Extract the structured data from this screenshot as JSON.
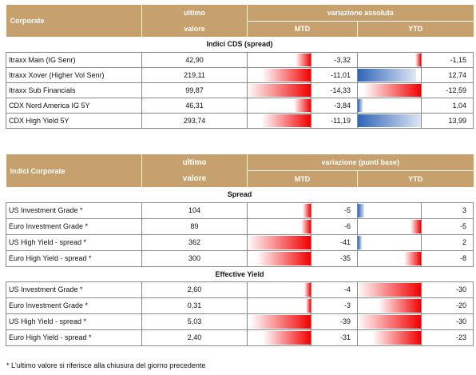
{
  "table1": {
    "header": {
      "col1": "Corporate",
      "ultimo_line1": "ultimo",
      "ultimo_line2": "valore",
      "variazione": "variazione assoluta",
      "mtd": "MTD",
      "ytd": "YTD"
    },
    "section": "Indici CDS (spread)",
    "rows": [
      {
        "name": "Itraxx Main (IG Senr)",
        "value": "42,90",
        "mtd": -3.32,
        "mtd_label": "-3,32",
        "ytd": -1.15,
        "ytd_label": "-1,15"
      },
      {
        "name": "Itraxx Xover (Higher Vol Senr)",
        "value": "219,11",
        "mtd": -11.01,
        "mtd_label": "-11,01",
        "ytd": 12.74,
        "ytd_label": "12,74"
      },
      {
        "name": "Itraxx Sub Financials",
        "value": "99,87",
        "mtd": -14.33,
        "mtd_label": "-14,33",
        "ytd": -12.59,
        "ytd_label": "-12,59"
      },
      {
        "name": "CDX Nord America IG 5Y",
        "value": "46,31",
        "mtd": -3.84,
        "mtd_label": "-3,84",
        "ytd": 1.04,
        "ytd_label": "1,04"
      },
      {
        "name": "CDX High Yield 5Y",
        "value": "293,74",
        "mtd": -11.19,
        "mtd_label": "-11,19",
        "ytd": 13.99,
        "ytd_label": "13,99"
      }
    ]
  },
  "table2": {
    "header": {
      "col1": "Indici Corporate",
      "ultimo_line1": "ultimo",
      "ultimo_line2": "valore",
      "variazione": "variazione (punti base)",
      "mtd": "MTD",
      "ytd": "YTD"
    },
    "sections": [
      {
        "title": "Spread",
        "rows": [
          {
            "name": "US Investment Grade *",
            "value": "104",
            "mtd": -5,
            "mtd_label": "-5",
            "ytd": 3,
            "ytd_label": "3"
          },
          {
            "name": "Euro Investment Grade *",
            "value": "89",
            "mtd": -6,
            "mtd_label": "-6",
            "ytd": -5,
            "ytd_label": "-5"
          },
          {
            "name": "US High Yield  - spread *",
            "value": "362",
            "mtd": -41,
            "mtd_label": "-41",
            "ytd": 2,
            "ytd_label": "2"
          },
          {
            "name": "Euro High Yield  - spread *",
            "value": "300",
            "mtd": -35,
            "mtd_label": "-35",
            "ytd": -8,
            "ytd_label": "-8"
          }
        ]
      },
      {
        "title": "Effective Yield",
        "rows": [
          {
            "name": "US Investment Grade *",
            "value": "2,60",
            "mtd": -4,
            "mtd_label": "-4",
            "ytd": -30,
            "ytd_label": "-30"
          },
          {
            "name": "Euro Investment Grade *",
            "value": "0,31",
            "mtd": -3,
            "mtd_label": "-3",
            "ytd": -20,
            "ytd_label": "-20"
          },
          {
            "name": "US High Yield  - spread *",
            "value": "5,03",
            "mtd": -39,
            "mtd_label": "-39",
            "ytd": -30,
            "ytd_label": "-30"
          },
          {
            "name": "Euro High Yield  - spread *",
            "value": "2,40",
            "mtd": -31,
            "mtd_label": "-31",
            "ytd": -23,
            "ytd_label": "-23"
          }
        ]
      }
    ]
  },
  "footnote": "* L'ultimo valore si riferisce alla chiusura del giorno precedente",
  "colors": {
    "header_bg": "#c6a16e",
    "negative": "#f20000",
    "positive": "#2f65b7"
  }
}
